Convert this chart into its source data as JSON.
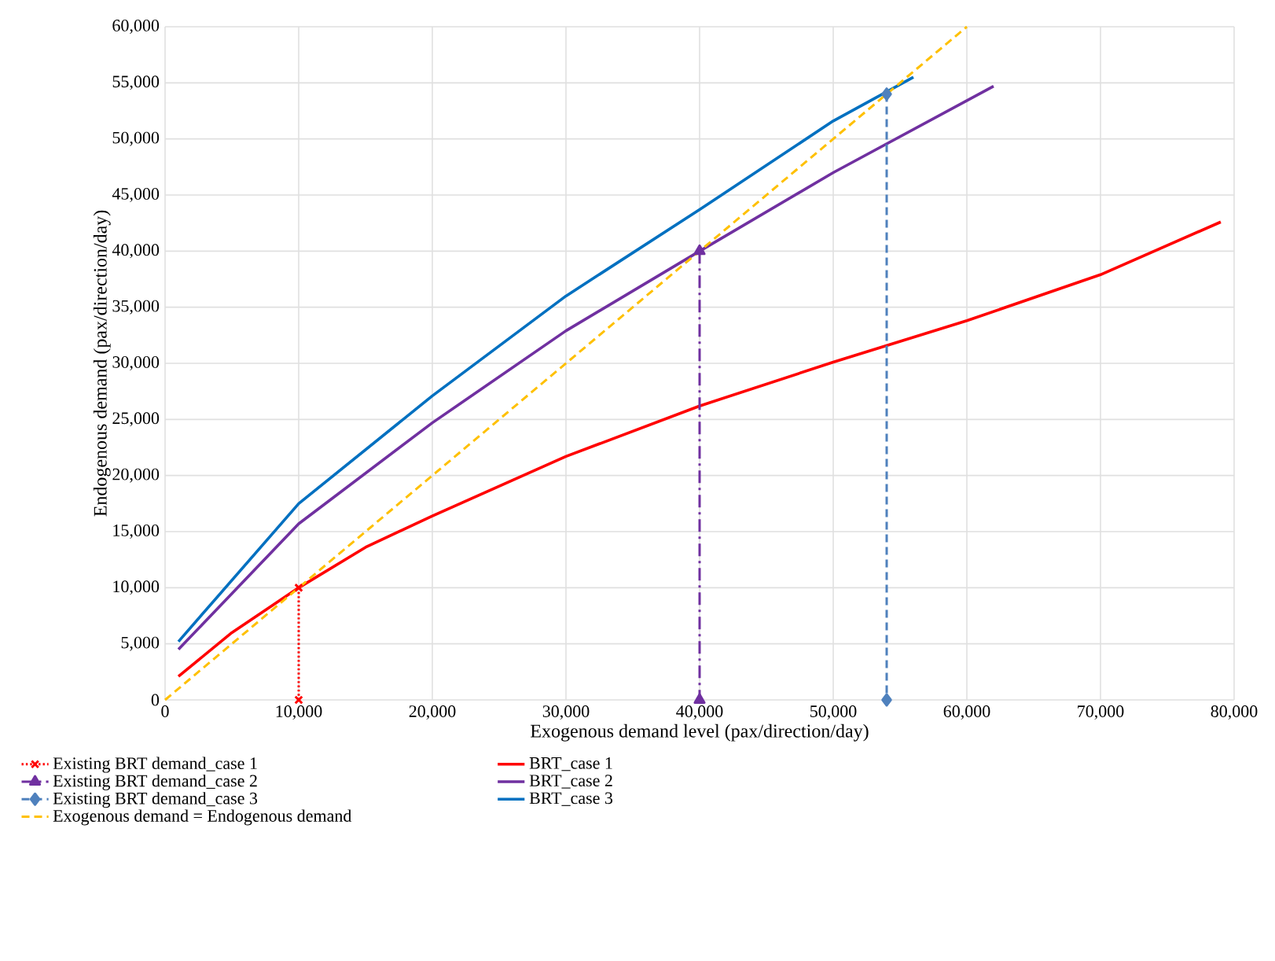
{
  "chart_data": {
    "type": "line",
    "xlabel": "Exogenous demand level (pax/direction/day)",
    "ylabel": "Endogenous demand (pax/direction/day)",
    "xlim": [
      0,
      80000
    ],
    "ylim": [
      0,
      60000
    ],
    "xticks": [
      0,
      {
        "value": 10000,
        "label": "10,000"
      },
      {
        "value": 20000,
        "label": "20,000"
      },
      {
        "value": 30000,
        "label": "30,000"
      },
      {
        "value": 40000,
        "label": "40,000"
      },
      {
        "value": 50000,
        "label": "50,000"
      },
      {
        "value": 60000,
        "label": "60,000"
      },
      {
        "value": 70000,
        "label": "70,000"
      },
      {
        "value": 80000,
        "label": "80,000"
      }
    ],
    "yticks": [
      0,
      {
        "value": 5000,
        "label": "5,000"
      },
      {
        "value": 10000,
        "label": "10,000"
      },
      {
        "value": 15000,
        "label": "15,000"
      },
      {
        "value": 20000,
        "label": "20,000"
      },
      {
        "value": 25000,
        "label": "25,000"
      },
      {
        "value": 30000,
        "label": "30,000"
      },
      {
        "value": 35000,
        "label": "35,000"
      },
      {
        "value": 40000,
        "label": "40,000"
      },
      {
        "value": 45000,
        "label": "45,000"
      },
      {
        "value": 50000,
        "label": "50,000"
      },
      {
        "value": 55000,
        "label": "55,000"
      },
      {
        "value": 60000,
        "label": "60,000"
      }
    ],
    "grid": true,
    "legend": "bottom",
    "series": [
      {
        "name": "Existing BRT demand_case 1",
        "color": "#ff0000",
        "line_style": "dotted",
        "marker": "cross",
        "x": [
          10000,
          10000
        ],
        "values": [
          10000,
          0
        ]
      },
      {
        "name": "BRT_case 1",
        "color": "#ff0000",
        "line_style": "solid",
        "marker": "none",
        "x": [
          1000,
          5000,
          10000,
          15000,
          20000,
          30000,
          40000,
          50000,
          60000,
          70000,
          79000
        ],
        "values": [
          2100,
          6000,
          10000,
          13600,
          16400,
          21700,
          26200,
          30100,
          33800,
          37900,
          42600
        ]
      },
      {
        "name": "Existing BRT demand_case 2",
        "color": "#7030a0",
        "line_style": "dashdot",
        "marker": "triangle",
        "x": [
          40000,
          40000
        ],
        "values": [
          40000,
          0
        ]
      },
      {
        "name": "BRT_case 2",
        "color": "#7030a0",
        "line_style": "solid",
        "marker": "none",
        "x": [
          1000,
          10000,
          20000,
          30000,
          40000,
          50000,
          62000
        ],
        "values": [
          4500,
          15700,
          24700,
          32900,
          40000,
          47000,
          54700
        ]
      },
      {
        "name": "Existing BRT demand_case 3",
        "color": "#4f81bd",
        "line_style": "dashed",
        "marker": "diamond",
        "x": [
          54000,
          54000
        ],
        "values": [
          54000,
          0
        ]
      },
      {
        "name": "BRT_case 3",
        "color": "#0070c0",
        "line_style": "solid",
        "marker": "none",
        "x": [
          1000,
          10000,
          20000,
          30000,
          40000,
          50000,
          56000
        ],
        "values": [
          5200,
          17500,
          27100,
          36000,
          43700,
          51600,
          55500
        ]
      },
      {
        "name": "Exogenous demand = Endogenous demand",
        "color": "#ffc000",
        "line_style": "dashed",
        "marker": "none",
        "x": [
          0,
          60000
        ],
        "values": [
          0,
          60000
        ]
      }
    ]
  }
}
